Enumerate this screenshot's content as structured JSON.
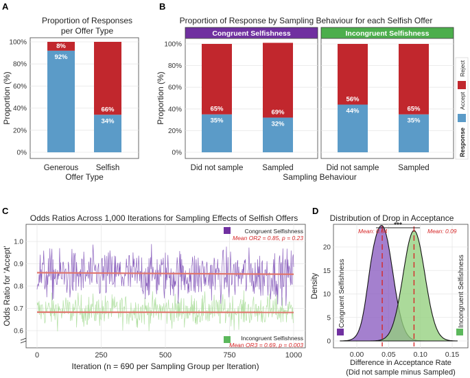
{
  "colors": {
    "accept": "#5b9bc8",
    "reject": "#c1272d",
    "congruent": "#7030a0",
    "incongruent": "#5cb85c",
    "congruent_line": "#7b4bb5",
    "incongruent_line": "#a8dd98",
    "trend": "#e0766e",
    "mean_line": "#d62728"
  },
  "panels": {
    "a": "A",
    "b": "B",
    "c": "C",
    "d": "D"
  },
  "chart_data": [
    {
      "id": "A",
      "type": "bar",
      "stacked": true,
      "title": [
        "Proportion of Responses",
        "per Offer Type"
      ],
      "xlabel": "Offer Type",
      "ylabel": "Proportion (%)",
      "categories": [
        "Generous",
        "Selfish"
      ],
      "series": [
        {
          "name": "Accept",
          "values": [
            92,
            34
          ],
          "labels": [
            "92%",
            "34%"
          ]
        },
        {
          "name": "Reject",
          "values": [
            8,
            66
          ],
          "labels": [
            "8%",
            "66%"
          ]
        }
      ],
      "ylim": [
        0,
        100
      ],
      "yticks": [
        "0%",
        "20%",
        "40%",
        "60%",
        "80%",
        "100%"
      ]
    },
    {
      "id": "B",
      "type": "bar",
      "stacked": true,
      "title": "Proportion of Response by Sampling Behaviour for each Selfish Offer",
      "xlabel": "Sampling Behaviour",
      "ylabel": "Proportion (%)",
      "yticks": [
        "0%",
        "20%",
        "40%",
        "60%",
        "80%",
        "100%"
      ],
      "ylim": [
        0,
        100
      ],
      "facets": [
        {
          "label": "Congruent Selfishness",
          "categories": [
            "Did not sample",
            "Sampled"
          ],
          "accept": [
            35,
            32
          ],
          "reject": [
            65,
            69
          ],
          "accept_labels": [
            "35%",
            "32%"
          ],
          "reject_labels": [
            "65%",
            "69%"
          ]
        },
        {
          "label": "Incongruent Selfishness",
          "categories": [
            "Did not sample",
            "Sampled"
          ],
          "accept": [
            44,
            35
          ],
          "reject": [
            56,
            65
          ],
          "accept_labels": [
            "44%",
            "35%"
          ],
          "reject_labels": [
            "56%",
            "65%"
          ]
        }
      ],
      "legend": {
        "title": "Response",
        "items": [
          "Reject",
          "Accept"
        ]
      }
    },
    {
      "id": "C",
      "type": "line",
      "title": "Odds Ratios Across 1,000 Iterations for Sampling Effects of Selfish Offers",
      "xlabel": "Iteration (n = 690 per Sampling Group per Iteration)",
      "ylabel": "Odds Ratio for 'Accept'",
      "xticks": [
        0,
        250,
        500,
        750,
        1000
      ],
      "yticks": [
        0.6,
        0.7,
        0.8,
        0.9,
        1.0
      ],
      "ylim": [
        0.55,
        1.05
      ],
      "xlim": [
        0,
        1000
      ],
      "series": [
        {
          "name": "Congruent Selfishness",
          "mean": 0.85,
          "spread": 0.055,
          "annotation": "Mean OR2 = 0.85, p = 0.23",
          "trend": [
            0.86,
            0.853
          ]
        },
        {
          "name": "Incongruent Selfishness",
          "mean": 0.69,
          "spread": 0.035,
          "annotation": "Mean OR3 = 0.69, p = 0.003",
          "trend": [
            0.683,
            0.682
          ]
        }
      ]
    },
    {
      "id": "D",
      "type": "area",
      "title": "Distribution of Drop in Acceptance",
      "xlabel": [
        "Difference in Acceptance Rate",
        "(Did not sample minus Sampled)"
      ],
      "ylabel": "Density",
      "xticks": [
        0.0,
        0.05,
        0.1,
        0.15
      ],
      "xtick_labels": [
        "0.00",
        "0.05",
        "0.10",
        "0.15"
      ],
      "yticks": [
        0,
        5,
        10,
        15,
        20
      ],
      "xlim": [
        -0.025,
        0.155
      ],
      "ylim": [
        -0.8,
        26
      ],
      "series": [
        {
          "name": "Congruent Selfishness",
          "mean": 0.04,
          "sd": 0.0165,
          "peak": 24.3,
          "annotation": "Mean: 0.04"
        },
        {
          "name": "Incongruent Selfishness",
          "mean": 0.09,
          "sd": 0.017,
          "peak": 23.5,
          "annotation": "Mean: 0.09"
        }
      ],
      "significance": "***"
    }
  ]
}
